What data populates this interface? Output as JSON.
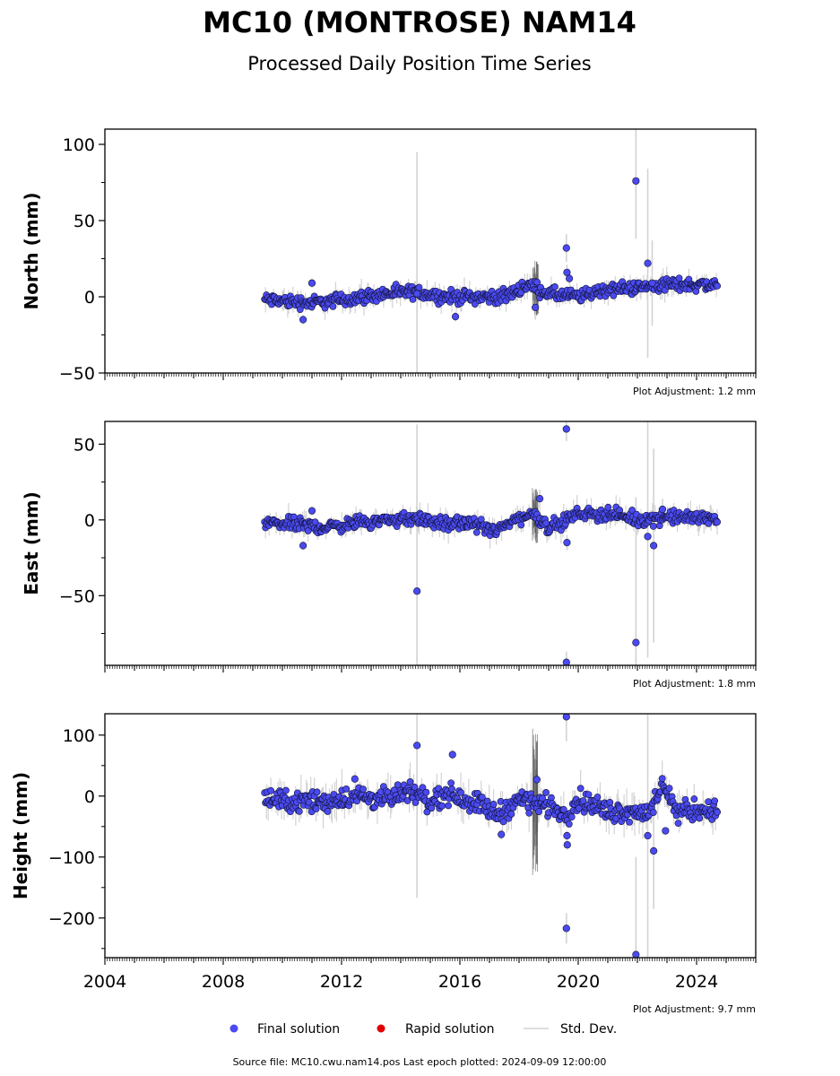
{
  "figure": {
    "title": "MC10 (MONTROSE) NAM14",
    "subtitle": "Processed Daily Position Time Series",
    "footer": "Source file: MC10.cwu.nam14.pos  Last epoch plotted: 2024-09-09 12:00:00",
    "colors": {
      "final": "#4a4af0",
      "rapid": "#e00000",
      "stddev": "#d3d3d3"
    }
  },
  "legend": [
    {
      "label": "Final solution",
      "marker": "dot",
      "color": "#4a4af0"
    },
    {
      "label": "Rapid solution",
      "marker": "dot",
      "color": "#e00000"
    },
    {
      "label": "Std. Dev.",
      "marker": "line",
      "color": "#d3d3d3"
    }
  ],
  "chart_data": [
    {
      "type": "scatter",
      "component": "north",
      "ylabel": "North (mm)",
      "adjustment": "Plot Adjustment: 1.2 mm",
      "xlim": [
        2004.0,
        2026.0
      ],
      "ylim": [
        -50,
        110
      ],
      "yticks": [
        -50,
        0,
        50,
        100
      ],
      "yticklabels": [
        "−50",
        "0",
        "50",
        "100"
      ],
      "xticks": [
        2004,
        2008,
        2012,
        2016,
        2020,
        2024
      ],
      "xticklabels": [],
      "trend": [
        [
          2009.4,
          -2
        ],
        [
          2011.0,
          -4
        ],
        [
          2012.0,
          -2
        ],
        [
          2013.5,
          2
        ],
        [
          2014.5,
          3
        ],
        [
          2015.5,
          0
        ],
        [
          2016.5,
          0
        ],
        [
          2017.5,
          0
        ],
        [
          2018.3,
          8
        ],
        [
          2019.0,
          2
        ],
        [
          2020.0,
          0
        ],
        [
          2021.0,
          5
        ],
        [
          2022.0,
          6
        ],
        [
          2023.0,
          8
        ],
        [
          2024.7,
          8
        ]
      ],
      "spread": 3,
      "outliers": [
        {
          "t": 2010.7,
          "v": -15,
          "sd": 3
        },
        {
          "t": 2011.0,
          "v": 9,
          "sd": 3
        },
        {
          "t": 2014.55,
          "v": 2,
          "sd": 93
        },
        {
          "t": 2015.85,
          "v": -13,
          "sd": 3
        },
        {
          "t": 2018.55,
          "v": -7,
          "sd": 8
        },
        {
          "t": 2019.6,
          "v": 32,
          "sd": 9
        },
        {
          "t": 2019.62,
          "v": 16,
          "sd": 5
        },
        {
          "t": 2019.7,
          "v": 12,
          "sd": 4
        },
        {
          "t": 2021.95,
          "v": 76,
          "sd": 38
        },
        {
          "t": 2022.35,
          "v": 22,
          "sd": 62
        },
        {
          "t": 2022.5,
          "v": 9,
          "sd": 28
        }
      ]
    },
    {
      "type": "scatter",
      "component": "east",
      "ylabel": "East (mm)",
      "adjustment": "Plot Adjustment: 1.8 mm",
      "xlim": [
        2004.0,
        2026.0
      ],
      "ylim": [
        -96,
        65
      ],
      "yticks": [
        -50,
        0,
        50
      ],
      "yticklabels": [
        "−50",
        "0",
        "50"
      ],
      "xticks": [
        2004,
        2008,
        2012,
        2016,
        2020,
        2024
      ],
      "xticklabels": [],
      "trend": [
        [
          2009.4,
          -2
        ],
        [
          2010.5,
          -3
        ],
        [
          2011.5,
          -5
        ],
        [
          2012.5,
          -2
        ],
        [
          2013.5,
          0
        ],
        [
          2014.5,
          1
        ],
        [
          2015.5,
          -3
        ],
        [
          2016.5,
          -2
        ],
        [
          2017.2,
          -8
        ],
        [
          2017.8,
          0
        ],
        [
          2018.5,
          4
        ],
        [
          2019.0,
          -5
        ],
        [
          2019.6,
          0
        ],
        [
          2020.0,
          4
        ],
        [
          2021.0,
          4
        ],
        [
          2022.0,
          0
        ],
        [
          2023.0,
          2
        ],
        [
          2024.7,
          1
        ]
      ],
      "spread": 3,
      "outliers": [
        {
          "t": 2010.7,
          "v": -17,
          "sd": 3
        },
        {
          "t": 2011.0,
          "v": 6,
          "sd": 3
        },
        {
          "t": 2014.55,
          "v": -47,
          "sd": 110
        },
        {
          "t": 2018.7,
          "v": 14,
          "sd": 6
        },
        {
          "t": 2019.6,
          "v": 60,
          "sd": 8
        },
        {
          "t": 2019.62,
          "v": -15,
          "sd": 5
        },
        {
          "t": 2019.6,
          "v": -94,
          "sd": 7
        },
        {
          "t": 2021.95,
          "v": -81,
          "sd": 96
        },
        {
          "t": 2022.35,
          "v": -11,
          "sd": 80
        },
        {
          "t": 2022.55,
          "v": -17,
          "sd": 64
        },
        {
          "t": 2022.85,
          "v": 7,
          "sd": 7
        }
      ]
    },
    {
      "type": "scatter",
      "component": "height",
      "ylabel": "Height (mm)",
      "adjustment": "Plot Adjustment: 9.7 mm",
      "xlim": [
        2004.0,
        2026.0
      ],
      "ylim": [
        -265,
        135
      ],
      "yticks": [
        -200,
        -100,
        0,
        100
      ],
      "yticklabels": [
        "−200",
        "−100",
        "0",
        "100"
      ],
      "xticks": [
        2004,
        2008,
        2012,
        2016,
        2020,
        2024
      ],
      "xticklabels": [
        "2004",
        "2008",
        "2012",
        "2016",
        "2020",
        "2024"
      ],
      "trend": [
        [
          2009.4,
          -5
        ],
        [
          2010.5,
          -10
        ],
        [
          2011.5,
          -8
        ],
        [
          2012.5,
          0
        ],
        [
          2013.5,
          -5
        ],
        [
          2014.5,
          5
        ],
        [
          2015.0,
          -10
        ],
        [
          2015.5,
          5
        ],
        [
          2016.5,
          -10
        ],
        [
          2017.3,
          -30
        ],
        [
          2018.0,
          -5
        ],
        [
          2019.0,
          -15
        ],
        [
          2019.6,
          -30
        ],
        [
          2020.0,
          -5
        ],
        [
          2021.0,
          -25
        ],
        [
          2022.5,
          -25
        ],
        [
          2022.9,
          20
        ],
        [
          2023.3,
          -25
        ],
        [
          2024.7,
          -22
        ]
      ],
      "spread": 12,
      "outliers": [
        {
          "t": 2012.45,
          "v": 28,
          "sd": 6
        },
        {
          "t": 2014.55,
          "v": 83,
          "sd": 250
        },
        {
          "t": 2015.75,
          "v": 68,
          "sd": 8
        },
        {
          "t": 2017.4,
          "v": -63,
          "sd": 8
        },
        {
          "t": 2018.6,
          "v": 27,
          "sd": 20
        },
        {
          "t": 2019.6,
          "v": 130,
          "sd": 40
        },
        {
          "t": 2019.62,
          "v": -65,
          "sd": 8
        },
        {
          "t": 2019.63,
          "v": -80,
          "sd": 8
        },
        {
          "t": 2019.6,
          "v": -217,
          "sd": 25
        },
        {
          "t": 2021.95,
          "v": -260,
          "sd": 160
        },
        {
          "t": 2022.35,
          "v": -65,
          "sd": 200
        },
        {
          "t": 2022.55,
          "v": -90,
          "sd": 95
        },
        {
          "t": 2022.95,
          "v": -57,
          "sd": 6
        }
      ]
    }
  ]
}
